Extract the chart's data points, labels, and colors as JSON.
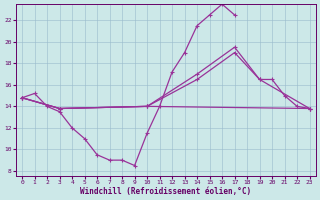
{
  "bg_color": "#cce8e8",
  "line_color": "#993399",
  "grid_color": "#99bbcc",
  "xlabel": "Windchill (Refroidissement éolien,°C)",
  "xlabel_color": "#660066",
  "tick_color": "#660066",
  "ylim": [
    7.5,
    23.5
  ],
  "xlim": [
    -0.5,
    23.5
  ],
  "yticks": [
    8,
    10,
    12,
    14,
    16,
    18,
    20,
    22
  ],
  "xticks": [
    0,
    1,
    2,
    3,
    4,
    5,
    6,
    7,
    8,
    9,
    10,
    11,
    12,
    13,
    14,
    15,
    16,
    17,
    18,
    19,
    20,
    21,
    22,
    23
  ],
  "curve1_x": [
    0,
    1,
    2,
    3,
    4,
    5,
    6,
    7,
    8,
    9,
    10,
    11,
    12,
    13,
    14,
    15,
    16,
    17
  ],
  "curve1_y": [
    14.8,
    15.2,
    14.0,
    13.5,
    12.0,
    11.0,
    9.5,
    9.0,
    9.0,
    8.5,
    11.5,
    14.0,
    17.2,
    19.0,
    21.5,
    22.5,
    23.5,
    22.5
  ],
  "curve2_x": [
    0,
    3,
    10,
    23
  ],
  "curve2_y": [
    14.8,
    13.8,
    14.0,
    13.8
  ],
  "curve3_x": [
    0,
    3,
    10,
    14,
    17,
    19,
    20,
    21,
    22,
    23
  ],
  "curve3_y": [
    14.8,
    13.8,
    14.0,
    16.5,
    19.0,
    16.5,
    16.5,
    15.0,
    14.0,
    13.8
  ],
  "curve4_x": [
    0,
    3,
    10,
    14,
    17,
    19,
    23
  ],
  "curve4_y": [
    14.8,
    13.8,
    14.0,
    17.0,
    19.5,
    16.5,
    13.8
  ]
}
